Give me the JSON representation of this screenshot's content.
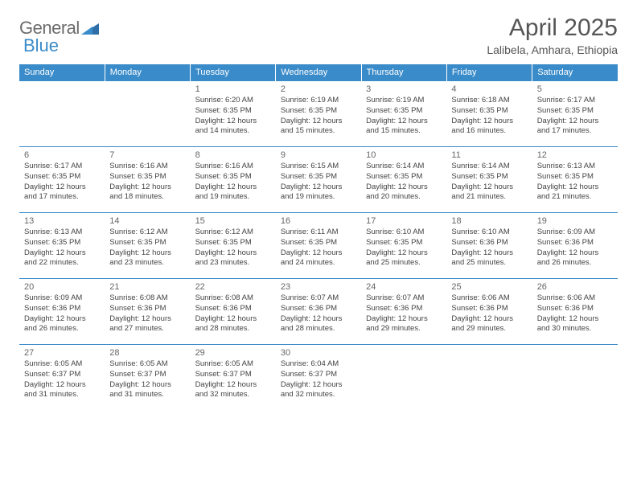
{
  "brand": {
    "left": "General",
    "right": "Blue"
  },
  "title": "April 2025",
  "subtitle": "Lalibela, Amhara, Ethiopia",
  "style": {
    "header_bg": "#3a8bc9",
    "header_fg": "#ffffff",
    "row_border": "#3a8bc9",
    "title_color": "#555555",
    "body_text": "#444444",
    "daynum_color": "#666666",
    "page_bg": "#ffffff",
    "title_fontsize": 30,
    "subtitle_fontsize": 14,
    "dayhead_fontsize": 11,
    "cell_fontsize": 9.5
  },
  "day_headers": [
    "Sunday",
    "Monday",
    "Tuesday",
    "Wednesday",
    "Thursday",
    "Friday",
    "Saturday"
  ],
  "weeks": [
    [
      null,
      null,
      {
        "n": "1",
        "sr": "6:20 AM",
        "ss": "6:35 PM",
        "dl": "12 hours and 14 minutes."
      },
      {
        "n": "2",
        "sr": "6:19 AM",
        "ss": "6:35 PM",
        "dl": "12 hours and 15 minutes."
      },
      {
        "n": "3",
        "sr": "6:19 AM",
        "ss": "6:35 PM",
        "dl": "12 hours and 15 minutes."
      },
      {
        "n": "4",
        "sr": "6:18 AM",
        "ss": "6:35 PM",
        "dl": "12 hours and 16 minutes."
      },
      {
        "n": "5",
        "sr": "6:17 AM",
        "ss": "6:35 PM",
        "dl": "12 hours and 17 minutes."
      }
    ],
    [
      {
        "n": "6",
        "sr": "6:17 AM",
        "ss": "6:35 PM",
        "dl": "12 hours and 17 minutes."
      },
      {
        "n": "7",
        "sr": "6:16 AM",
        "ss": "6:35 PM",
        "dl": "12 hours and 18 minutes."
      },
      {
        "n": "8",
        "sr": "6:16 AM",
        "ss": "6:35 PM",
        "dl": "12 hours and 19 minutes."
      },
      {
        "n": "9",
        "sr": "6:15 AM",
        "ss": "6:35 PM",
        "dl": "12 hours and 19 minutes."
      },
      {
        "n": "10",
        "sr": "6:14 AM",
        "ss": "6:35 PM",
        "dl": "12 hours and 20 minutes."
      },
      {
        "n": "11",
        "sr": "6:14 AM",
        "ss": "6:35 PM",
        "dl": "12 hours and 21 minutes."
      },
      {
        "n": "12",
        "sr": "6:13 AM",
        "ss": "6:35 PM",
        "dl": "12 hours and 21 minutes."
      }
    ],
    [
      {
        "n": "13",
        "sr": "6:13 AM",
        "ss": "6:35 PM",
        "dl": "12 hours and 22 minutes."
      },
      {
        "n": "14",
        "sr": "6:12 AM",
        "ss": "6:35 PM",
        "dl": "12 hours and 23 minutes."
      },
      {
        "n": "15",
        "sr": "6:12 AM",
        "ss": "6:35 PM",
        "dl": "12 hours and 23 minutes."
      },
      {
        "n": "16",
        "sr": "6:11 AM",
        "ss": "6:35 PM",
        "dl": "12 hours and 24 minutes."
      },
      {
        "n": "17",
        "sr": "6:10 AM",
        "ss": "6:35 PM",
        "dl": "12 hours and 25 minutes."
      },
      {
        "n": "18",
        "sr": "6:10 AM",
        "ss": "6:36 PM",
        "dl": "12 hours and 25 minutes."
      },
      {
        "n": "19",
        "sr": "6:09 AM",
        "ss": "6:36 PM",
        "dl": "12 hours and 26 minutes."
      }
    ],
    [
      {
        "n": "20",
        "sr": "6:09 AM",
        "ss": "6:36 PM",
        "dl": "12 hours and 26 minutes."
      },
      {
        "n": "21",
        "sr": "6:08 AM",
        "ss": "6:36 PM",
        "dl": "12 hours and 27 minutes."
      },
      {
        "n": "22",
        "sr": "6:08 AM",
        "ss": "6:36 PM",
        "dl": "12 hours and 28 minutes."
      },
      {
        "n": "23",
        "sr": "6:07 AM",
        "ss": "6:36 PM",
        "dl": "12 hours and 28 minutes."
      },
      {
        "n": "24",
        "sr": "6:07 AM",
        "ss": "6:36 PM",
        "dl": "12 hours and 29 minutes."
      },
      {
        "n": "25",
        "sr": "6:06 AM",
        "ss": "6:36 PM",
        "dl": "12 hours and 29 minutes."
      },
      {
        "n": "26",
        "sr": "6:06 AM",
        "ss": "6:36 PM",
        "dl": "12 hours and 30 minutes."
      }
    ],
    [
      {
        "n": "27",
        "sr": "6:05 AM",
        "ss": "6:37 PM",
        "dl": "12 hours and 31 minutes."
      },
      {
        "n": "28",
        "sr": "6:05 AM",
        "ss": "6:37 PM",
        "dl": "12 hours and 31 minutes."
      },
      {
        "n": "29",
        "sr": "6:05 AM",
        "ss": "6:37 PM",
        "dl": "12 hours and 32 minutes."
      },
      {
        "n": "30",
        "sr": "6:04 AM",
        "ss": "6:37 PM",
        "dl": "12 hours and 32 minutes."
      },
      null,
      null,
      null
    ]
  ],
  "labels": {
    "sunrise": "Sunrise:",
    "sunset": "Sunset:",
    "daylight": "Daylight:"
  }
}
